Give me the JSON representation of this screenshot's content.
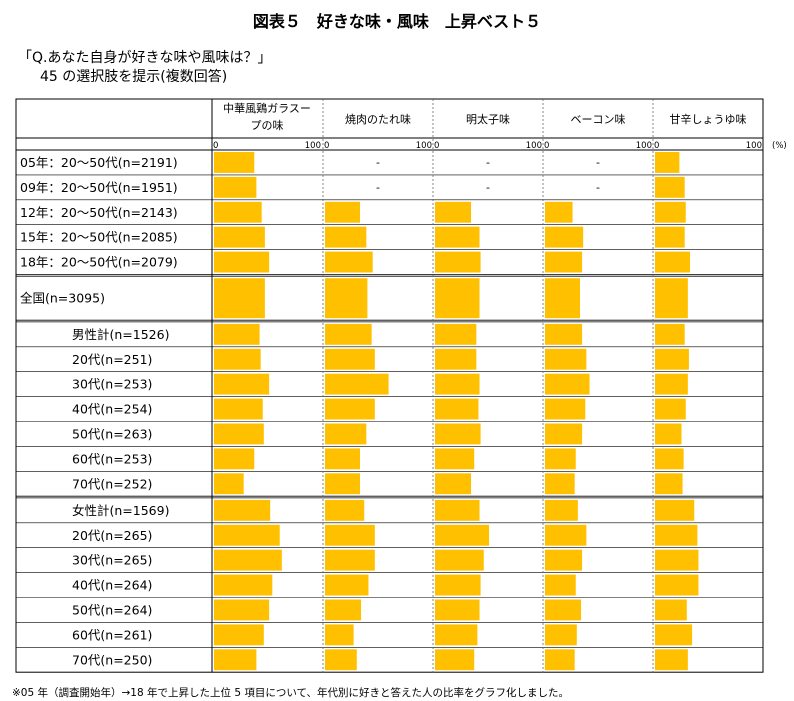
{
  "title": "図表５　好きな味・風味　上昇ベスト５",
  "question_line1": "「Q.あなた自身が好きな味や風味は？」",
  "question_line2": "45 の選択肢を提示(複数回答)",
  "footnote": "※05 年（調査開始年）→18 年で上昇した上位 5 項目について、年代別に好きと答えた人の比率をグラフ化しました。",
  "chart_data": {
    "type": "bar",
    "orientation": "horizontal",
    "layout": "small-multiples",
    "unit": "(%)",
    "axis_min_label": "0",
    "axis_max_label": "100",
    "xlim": [
      0,
      100
    ],
    "bar_color": "#FFC000",
    "missing_label": "-",
    "columns": [
      "中華風鶏ガラスープの味",
      "焼肉のたれ味",
      "明太子味",
      "ベーコン味",
      "甘辛しょうゆ味"
    ],
    "column_lines": [
      [
        "中華風鶏ガラスー",
        "プの味"
      ],
      [
        "焼肉のたれ味"
      ],
      [
        "明太子味"
      ],
      [
        "ベーコン味"
      ],
      [
        "甘辛しょうゆ味"
      ]
    ],
    "groups": [
      {
        "name": "trend",
        "rows": [
          {
            "label": "05年：20〜50代(n=2191)",
            "values": [
              38,
              null,
              null,
              null,
              23
            ]
          },
          {
            "label": "09年：20〜50代(n=1951)",
            "values": [
              40,
              null,
              null,
              null,
              28
            ]
          },
          {
            "label": "12年：20〜50代(n=2143)",
            "values": [
              45,
              33,
              34,
              26,
              29
            ]
          },
          {
            "label": "15年：20〜50代(n=2085)",
            "values": [
              48,
              39,
              42,
              36,
              28
            ]
          },
          {
            "label": "18年：20〜50代(n=2079)",
            "values": [
              52,
              45,
              43,
              35,
              33
            ]
          }
        ]
      },
      {
        "name": "total",
        "rows": [
          {
            "label": "全国(n=3095)",
            "values": [
              48,
              40,
              42,
              33,
              31
            ]
          }
        ]
      },
      {
        "name": "male",
        "rows": [
          {
            "label": "男性計(n=1526)",
            "values": [
              43,
              44,
              39,
              35,
              28
            ]
          },
          {
            "label": "20代(n=251)",
            "values": [
              44,
              47,
              39,
              39,
              32
            ]
          },
          {
            "label": "30代(n=253)",
            "values": [
              52,
              60,
              42,
              42,
              31
            ]
          },
          {
            "label": "40代(n=254)",
            "values": [
              46,
              47,
              41,
              38,
              29
            ]
          },
          {
            "label": "50代(n=263)",
            "values": [
              47,
              39,
              43,
              35,
              25
            ]
          },
          {
            "label": "60代(n=253)",
            "values": [
              38,
              33,
              37,
              29,
              27
            ]
          },
          {
            "label": "70代(n=252)",
            "values": [
              28,
              33,
              34,
              28,
              26
            ]
          }
        ]
      },
      {
        "name": "female",
        "rows": [
          {
            "label": "女性計(n=1569)",
            "values": [
              53,
              37,
              42,
              31,
              37
            ]
          },
          {
            "label": "20代(n=265)",
            "values": [
              62,
              47,
              51,
              39,
              40
            ]
          },
          {
            "label": "30代(n=265)",
            "values": [
              64,
              47,
              46,
              35,
              41
            ]
          },
          {
            "label": "40代(n=264)",
            "values": [
              55,
              41,
              43,
              29,
              41
            ]
          },
          {
            "label": "50代(n=264)",
            "values": [
              52,
              34,
              42,
              34,
              30
            ]
          },
          {
            "label": "60代(n=261)",
            "values": [
              47,
              27,
              40,
              30,
              35
            ]
          },
          {
            "label": "70代(n=250)",
            "values": [
              40,
              30,
              37,
              28,
              31
            ]
          }
        ]
      }
    ]
  }
}
